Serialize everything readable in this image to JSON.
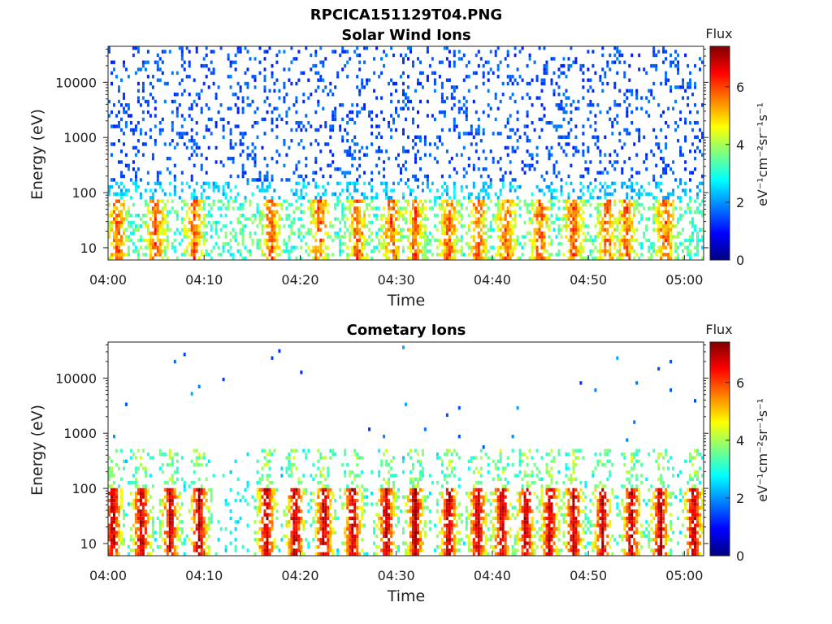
{
  "figure_title": "RPCICA151129T04.PNG",
  "colors": {
    "colormap": [
      "#00007f",
      "#0000ff",
      "#007fff",
      "#00ffff",
      "#7fff7f",
      "#ffff00",
      "#ff7f00",
      "#ff0000",
      "#7f0000"
    ],
    "axis": "#222222",
    "background": "#ffffff"
  },
  "chart_data": [
    {
      "type": "heatmap",
      "title": "Solar Wind Ions",
      "xlabel": "Time",
      "ylabel": "Energy (eV)",
      "x_range": [
        "04:00",
        "05:02"
      ],
      "x_ticks": [
        "04:00",
        "04:10",
        "04:20",
        "04:30",
        "04:40",
        "04:50",
        "05:00"
      ],
      "y_scale": "log",
      "y_range": [
        6,
        45000
      ],
      "y_ticks": [
        10,
        100,
        1000,
        10000
      ],
      "y_tick_labels": [
        "10",
        "100",
        "1000",
        "10000"
      ],
      "colorbar": {
        "title": "Flux",
        "label": "eV⁻¹cm⁻²sr⁻¹s⁻¹",
        "range": [
          0,
          7.4
        ],
        "ticks": [
          "0",
          "2",
          "4",
          "6"
        ]
      },
      "description": {
        "peak_energy_band_eV": [
          15,
          60
        ],
        "peak_flux": 6.8,
        "sparse_high_energy_flux": 1.5,
        "burst_times_min": [
          1,
          5,
          9,
          17,
          22,
          26,
          29.5,
          32,
          35.5,
          38.5,
          41.5,
          45,
          48.5,
          52,
          54,
          58
        ]
      }
    },
    {
      "type": "heatmap",
      "title": "Cometary Ions",
      "xlabel": "Time",
      "ylabel": "Energy (eV)",
      "x_range": [
        "04:00",
        "05:02"
      ],
      "x_ticks": [
        "04:00",
        "04:10",
        "04:20",
        "04:30",
        "04:40",
        "04:50",
        "05:00"
      ],
      "y_scale": "log",
      "y_range": [
        6,
        45000
      ],
      "y_ticks": [
        10,
        100,
        1000,
        10000
      ],
      "y_tick_labels": [
        "10",
        "100",
        "1000",
        "10000"
      ],
      "colorbar": {
        "title": "Flux",
        "label": "eV⁻¹cm⁻²sr⁻¹s⁻¹",
        "range": [
          0,
          7.4
        ],
        "ticks": [
          "0",
          "2",
          "4",
          "6"
        ]
      },
      "description": {
        "peak_energy_band_eV": [
          15,
          50
        ],
        "peak_flux": 7.2,
        "burst_times_min": [
          0.5,
          3.5,
          6.5,
          9.5,
          16.5,
          19.5,
          22.5,
          25.5,
          29,
          32,
          35.5,
          38.5,
          41,
          43.5,
          46,
          48.5,
          51.5,
          54.5,
          57.5,
          61
        ]
      }
    }
  ]
}
